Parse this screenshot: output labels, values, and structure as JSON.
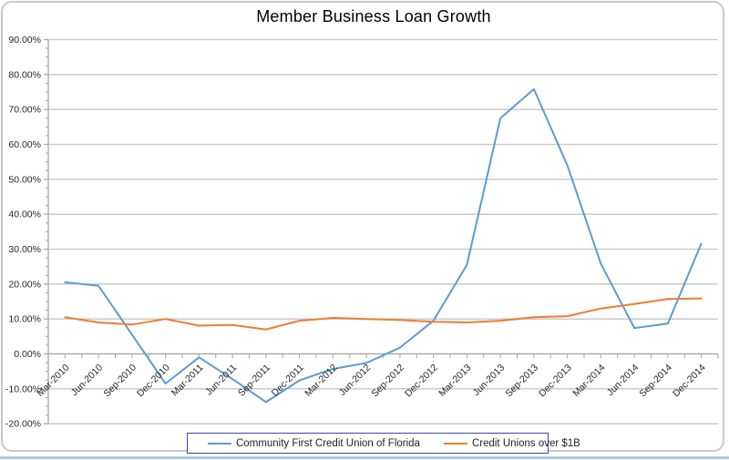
{
  "colors": {
    "series_blue": "#5B9BD5",
    "series_orange": "#ED7D31",
    "gridline": "#c6c6c6",
    "axis": "#a6a6a6",
    "text": "#262626",
    "legend_border": "#4444a0",
    "frame_border": "#c9c9c9",
    "bottom_edge": "#aac8e4"
  },
  "chart_data": {
    "type": "line",
    "title": "Member Business Loan Growth",
    "categories": [
      "Mar-2010",
      "Jun-2010",
      "Sep-2010",
      "Dec-2010",
      "Mar-2011",
      "Jun-2011",
      "Sep-2011",
      "Dec-2011",
      "Mar-2012",
      "Jun-2012",
      "Sep-2012",
      "Dec-2012",
      "Mar-2013",
      "Jun-2013",
      "Sep-2013",
      "Dec-2013",
      "Mar-2014",
      "Jun-2014",
      "Sep-2014",
      "Dec-2014"
    ],
    "series": [
      {
        "name": "Community First Credit Union of Florida",
        "color": "#5B9BD5",
        "values": [
          20.5,
          19.5,
          5.5,
          -8.5,
          -1.0,
          -7.2,
          -13.8,
          -7.6,
          -4.3,
          -2.6,
          1.8,
          9.5,
          25.5,
          67.5,
          75.8,
          54.0,
          25.8,
          7.4,
          8.7,
          31.6
        ]
      },
      {
        "name": "Credit Unions over $1B",
        "color": "#ED7D31",
        "values": [
          10.5,
          9.0,
          8.4,
          10.0,
          8.1,
          8.3,
          7.0,
          9.5,
          10.3,
          10.0,
          9.7,
          9.2,
          9.0,
          9.5,
          10.5,
          10.8,
          13.0,
          14.3,
          15.7,
          15.9
        ]
      }
    ],
    "xlabel": "",
    "ylabel": "",
    "ylim": [
      -20,
      90
    ],
    "y_major_step": 10,
    "y_minor_step": 2.5,
    "y_tick_labels": [
      "90.00%",
      "80.00%",
      "70.00%",
      "60.00%",
      "50.00%",
      "40.00%",
      "30.00%",
      "20.00%",
      "10.00%",
      "0.00%",
      "-10.00%",
      "-20.00%"
    ],
    "grid": "horizontal-major",
    "legend_position": "bottom"
  }
}
